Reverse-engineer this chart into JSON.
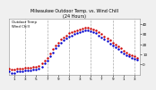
{
  "title": "Milwaukee Outdoor Temp. vs. Wind Chill\n(24 Hours)",
  "background_color": "#f0f0f0",
  "plot_bg_color": "#ffffff",
  "grid_color": "#aaaaaa",
  "temp_color": "#cc0000",
  "windchill_color": "#0000cc",
  "ylim": [
    -10,
    45
  ],
  "xlim": [
    0,
    24
  ],
  "ytick_vals": [
    0,
    10,
    20,
    30,
    40
  ],
  "ytick_labels": [
    "0",
    "10",
    "20",
    "30",
    "40"
  ],
  "xtick_vals": [
    1,
    3,
    5,
    7,
    9,
    11,
    13,
    15,
    17,
    19,
    21,
    23
  ],
  "xtick_labels": [
    "1",
    "3",
    "5",
    "7",
    "9",
    "1",
    "3",
    "5",
    "7",
    "9",
    "1",
    "3"
  ],
  "vgrid_positions": [
    3,
    7,
    11,
    15,
    19,
    23
  ],
  "temp_x": [
    0.0,
    0.5,
    1.0,
    1.5,
    2.0,
    2.5,
    3.0,
    3.5,
    4.0,
    4.5,
    5.0,
    5.5,
    6.0,
    6.5,
    7.0,
    7.5,
    8.0,
    8.5,
    9.0,
    9.5,
    10.0,
    10.5,
    11.0,
    11.5,
    12.0,
    12.5,
    13.0,
    13.5,
    14.0,
    14.5,
    15.0,
    15.5,
    16.0,
    16.5,
    17.0,
    17.5,
    18.0,
    18.5,
    19.0,
    19.5,
    20.0,
    20.5,
    21.0,
    21.5,
    22.0,
    22.5,
    23.0,
    23.5
  ],
  "temp_y": [
    -4,
    -5,
    -5,
    -4,
    -4,
    -4,
    -3,
    -3,
    -3,
    -2,
    -2,
    -1,
    1,
    4,
    7,
    11,
    15,
    19,
    22,
    25,
    27,
    29,
    31,
    32,
    33,
    34,
    35,
    36,
    37,
    37,
    36,
    35,
    34,
    32,
    30,
    28,
    26,
    24,
    22,
    20,
    18,
    16,
    14,
    12,
    10,
    9,
    8,
    7
  ],
  "wind_x": [
    0.0,
    0.5,
    1.0,
    1.5,
    2.0,
    2.5,
    3.0,
    3.5,
    4.0,
    4.5,
    5.0,
    5.5,
    6.0,
    6.5,
    7.0,
    7.5,
    8.0,
    8.5,
    9.0,
    9.5,
    10.0,
    10.5,
    11.0,
    11.5,
    12.0,
    12.5,
    13.0,
    13.5,
    14.0,
    14.5,
    15.0,
    15.5,
    16.0,
    16.5,
    17.0,
    17.5,
    18.0,
    18.5,
    19.0,
    19.5,
    20.0,
    20.5,
    21.0,
    21.5,
    22.0,
    22.5,
    23.0,
    23.5
  ],
  "wind_y": [
    -7,
    -8,
    -8,
    -7,
    -7,
    -7,
    -6,
    -6,
    -6,
    -5,
    -5,
    -4,
    -2,
    1,
    4,
    8,
    12,
    16,
    19,
    22,
    24,
    26,
    28,
    29,
    30,
    31,
    32,
    33,
    34,
    34,
    33,
    32,
    31,
    29,
    27,
    25,
    23,
    21,
    19,
    17,
    15,
    13,
    11,
    9,
    8,
    7,
    6,
    5
  ],
  "legend_text": "Outdoor Temp\nWind Chill",
  "title_fontsize": 3.5,
  "tick_fontsize": 3.0,
  "legend_fontsize": 2.8,
  "marker_size": 1.5
}
